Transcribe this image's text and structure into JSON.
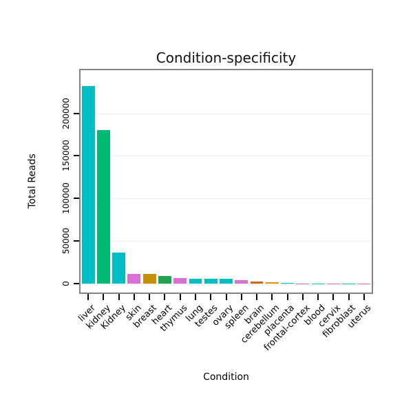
{
  "chart_data": {
    "type": "bar",
    "title": "Condition-specificity",
    "xlabel": "Condition",
    "ylabel": "Total Reads",
    "categories": [
      "liver",
      "kidney",
      "Kidney",
      "skin",
      "breast",
      "heart",
      "thymus",
      "lung",
      "testes",
      "ovary",
      "spleen",
      "brain",
      "cerebellum",
      "placenta",
      "frontal-cortex",
      "blood",
      "cervix",
      "fibroblast",
      "uterus"
    ],
    "values": [
      232000,
      180000,
      36000,
      11000,
      11000,
      8500,
      6500,
      6000,
      5500,
      5500,
      3800,
      2200,
      1800,
      500,
      350,
      250,
      180,
      120,
      90
    ],
    "colors": [
      "#00BFC4",
      "#00BA72",
      "#00BFC4",
      "#DA70D6",
      "#C49102",
      "#21A24C",
      "#DA70D6",
      "#00BFC4",
      "#00BFC4",
      "#00BFC4",
      "#DA70D6",
      "#C96A15",
      "#E3900F",
      "#00BFC4",
      "#DA70D6",
      "#00BFC4",
      "#DA70D6",
      "#00BFC4",
      "#DA70D6"
    ],
    "ylim": [
      0,
      240000
    ],
    "yticks": [
      0,
      50000,
      100000,
      150000,
      200000
    ],
    "ytick_labels": [
      "0",
      "50000",
      "100000",
      "150000",
      "200000"
    ],
    "grid": true,
    "legend": "none",
    "border_color": "#848484"
  }
}
